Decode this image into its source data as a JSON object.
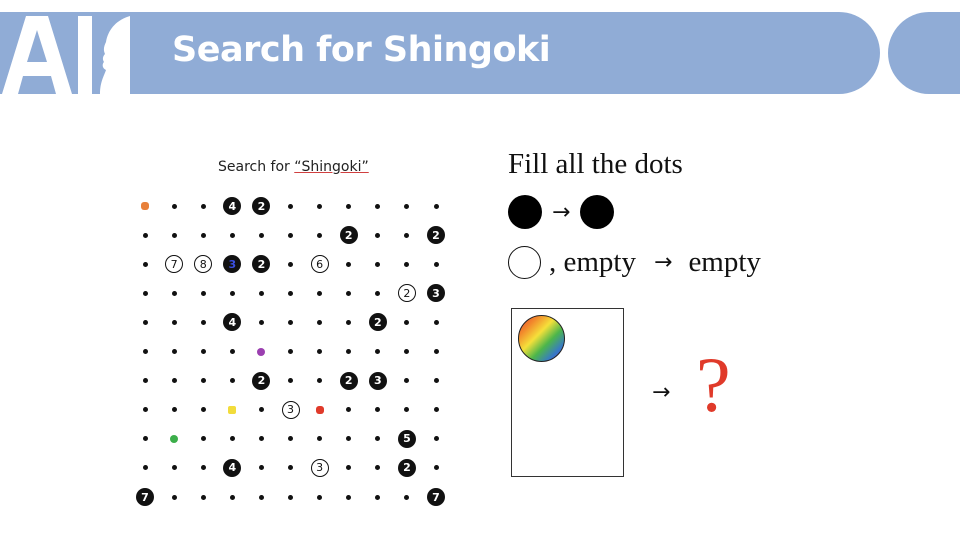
{
  "header": {
    "logo_text": "AI",
    "title": "Search for Shingoki",
    "band_color": "#90acd6"
  },
  "puzzle": {
    "caption_prefix": "Search for ",
    "caption_quoted": "“Shingoki”",
    "rows": 11,
    "cols": 11,
    "cells": [
      [
        "o",
        ".",
        ".",
        "B4",
        "B2",
        ".",
        ".",
        ".",
        ".",
        ".",
        "."
      ],
      [
        ".",
        ".",
        ".",
        ".",
        ".",
        ".",
        ".",
        "B2",
        ".",
        ".",
        "B2"
      ],
      [
        ".",
        "W7",
        "W8",
        "BB3",
        "B2",
        ".",
        "W6",
        ".",
        ".",
        ".",
        "."
      ],
      [
        ".",
        ".",
        ".",
        ".",
        ".",
        ".",
        ".",
        ".",
        ".",
        "W2",
        "B3"
      ],
      [
        ".",
        ".",
        ".",
        "B4",
        ".",
        ".",
        ".",
        ".",
        "B2",
        ".",
        "."
      ],
      [
        ".",
        ".",
        ".",
        ".",
        "p",
        ".",
        ".",
        ".",
        ".",
        ".",
        "."
      ],
      [
        ".",
        ".",
        ".",
        ".",
        "B2",
        ".",
        ".",
        "B2",
        "B3",
        ".",
        "."
      ],
      [
        ".",
        ".",
        ".",
        "y",
        ".",
        "W3",
        "r",
        ".",
        ".",
        ".",
        "."
      ],
      [
        ".",
        "g",
        ".",
        ".",
        ".",
        ".",
        ".",
        ".",
        ".",
        "B5",
        "."
      ],
      [
        ".",
        ".",
        ".",
        "B4",
        ".",
        ".",
        "W3",
        ".",
        ".",
        "B2",
        "."
      ],
      [
        "B7",
        ".",
        ".",
        ".",
        ".",
        ".",
        ".",
        ".",
        ".",
        ".",
        "B7"
      ]
    ],
    "colors": {
      "o": "orange",
      "p": "purple",
      "y": "yellow",
      "r": "red",
      "g": "green"
    }
  },
  "legend": {
    "title": "Fill all the dots",
    "row1_arrow": "→",
    "row2_suffix": ", empty",
    "row2_arrow": "→",
    "row2_result": "empty",
    "card_arrow": "→",
    "question": "?"
  }
}
